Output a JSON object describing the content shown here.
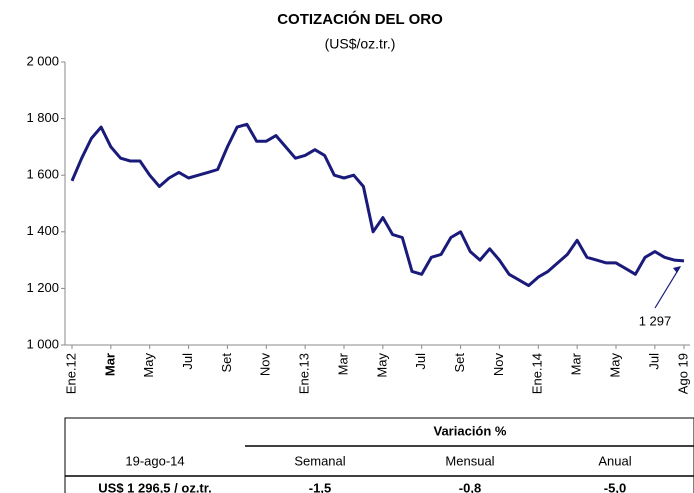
{
  "chart_data": {
    "type": "line",
    "title": "COTIZACIÓN DEL ORO",
    "subtitle": "(US$/oz.tr.)",
    "categories": [
      "Ene.12",
      null,
      null,
      null,
      "Mar",
      null,
      null,
      null,
      "May",
      null,
      null,
      null,
      "Jul",
      null,
      null,
      null,
      "Set",
      null,
      null,
      null,
      "Nov",
      null,
      null,
      null,
      "Ene.13",
      null,
      null,
      null,
      "Mar",
      null,
      null,
      null,
      "May",
      null,
      null,
      null,
      "Jul",
      null,
      null,
      null,
      "Set",
      null,
      null,
      null,
      "Nov",
      null,
      null,
      null,
      "Ene.14",
      null,
      null,
      null,
      "Mar",
      null,
      null,
      null,
      "May",
      null,
      null,
      null,
      "Jul",
      null,
      null,
      "Ago 19"
    ],
    "series": [
      {
        "name": "Oro",
        "color": "#1a1a7a",
        "values": [
          1580,
          1660,
          1730,
          1770,
          1700,
          1660,
          1650,
          1650,
          1600,
          1560,
          1590,
          1610,
          1590,
          1600,
          1610,
          1620,
          1700,
          1770,
          1780,
          1720,
          1720,
          1740,
          1700,
          1660,
          1670,
          1690,
          1670,
          1600,
          1590,
          1600,
          1560,
          1400,
          1450,
          1390,
          1380,
          1260,
          1250,
          1310,
          1320,
          1380,
          1400,
          1330,
          1300,
          1340,
          1300,
          1250,
          1230,
          1210,
          1240,
          1260,
          1290,
          1320,
          1370,
          1310,
          1300,
          1290,
          1290,
          1270,
          1250,
          1310,
          1330,
          1310,
          1300,
          1297
        ]
      }
    ],
    "annotation": "1 297",
    "ylim": [
      1000,
      2000
    ],
    "yticks": [
      {
        "value": 1000,
        "label": "1 000"
      },
      {
        "value": 1200,
        "label": "1 200"
      },
      {
        "value": 1400,
        "label": "1 400"
      },
      {
        "value": 1600,
        "label": "1 600"
      },
      {
        "value": 1800,
        "label": "1 800"
      },
      {
        "value": 2000,
        "label": "2 000"
      }
    ],
    "grid": false
  },
  "table": {
    "header": "Variación %",
    "columns": [
      "19-ago-14",
      "Semanal",
      "Mensual",
      "Anual"
    ],
    "row": [
      "US$ 1 296,5 / oz.tr.",
      "-1,5",
      "-0,8",
      "-5,0"
    ]
  }
}
